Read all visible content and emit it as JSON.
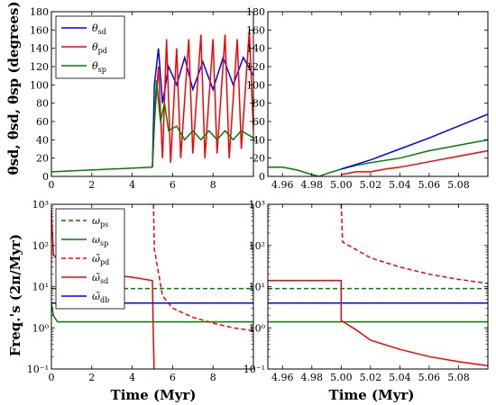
{
  "colors": {
    "blue": "#0000ff",
    "red": "#ff0000",
    "green": "#008000"
  },
  "chart_data": [
    {
      "id": "top-left",
      "type": "line",
      "xlim": [
        0,
        10
      ],
      "ylim": [
        0,
        180
      ],
      "x_ticks": [
        0,
        2,
        4,
        6,
        8
      ],
      "x_tick_labels": [
        "0",
        "2",
        "4",
        "6",
        "8"
      ],
      "y_ticks": [
        0,
        20,
        40,
        60,
        80,
        100,
        120,
        140,
        160,
        180
      ],
      "y_tick_labels": [
        "0",
        "20",
        "40",
        "60",
        "80",
        "100",
        "120",
        "140",
        "160",
        "180"
      ],
      "ylabel": "θsd, θsd, θsp (degrees)",
      "xlabel": "",
      "legend_position": "top-left",
      "legend": [
        {
          "name": "θ",
          "sub": "sd",
          "color": "blue"
        },
        {
          "name": "θ",
          "sub": "pd",
          "color": "red"
        },
        {
          "name": "θ",
          "sub": "sp",
          "color": "green"
        }
      ],
      "series": [
        {
          "key": "theta_sd_pre",
          "color": "green",
          "points": [
            [
              0,
              5
            ],
            [
              5,
              10
            ]
          ]
        },
        {
          "key": "theta_sd",
          "color": "blue",
          "points": [
            [
              5.0,
              10
            ],
            [
              5.1,
              100
            ],
            [
              5.3,
              140
            ],
            [
              5.5,
              80
            ],
            [
              5.8,
              120
            ],
            [
              6.2,
              100
            ],
            [
              6.6,
              130
            ],
            [
              7.0,
              95
            ],
            [
              7.5,
              125
            ],
            [
              8.0,
              95
            ],
            [
              8.5,
              130
            ],
            [
              9.0,
              100
            ],
            [
              9.5,
              130
            ],
            [
              10,
              110
            ]
          ]
        },
        {
          "key": "theta_pd",
          "color": "red",
          "points": [
            [
              5.0,
              10
            ],
            [
              5.1,
              60
            ],
            [
              5.3,
              120
            ],
            [
              5.5,
              20
            ],
            [
              5.7,
              150
            ],
            [
              5.9,
              15
            ],
            [
              6.2,
              140
            ],
            [
              6.4,
              20
            ],
            [
              6.8,
              150
            ],
            [
              7.0,
              25
            ],
            [
              7.4,
              155
            ],
            [
              7.6,
              20
            ],
            [
              8.0,
              150
            ],
            [
              8.2,
              25
            ],
            [
              8.6,
              155
            ],
            [
              8.8,
              20
            ],
            [
              9.2,
              150
            ],
            [
              9.4,
              30
            ],
            [
              9.8,
              160
            ],
            [
              10,
              50
            ]
          ]
        },
        {
          "key": "theta_sp",
          "color": "green",
          "points": [
            [
              5.0,
              10
            ],
            [
              5.2,
              105
            ],
            [
              5.4,
              60
            ],
            [
              5.6,
              80
            ],
            [
              5.8,
              50
            ],
            [
              6.2,
              55
            ],
            [
              6.6,
              40
            ],
            [
              7.0,
              50
            ],
            [
              7.4,
              40
            ],
            [
              7.8,
              50
            ],
            [
              8.2,
              40
            ],
            [
              8.6,
              50
            ],
            [
              9.0,
              40
            ],
            [
              9.4,
              50
            ],
            [
              10,
              42
            ]
          ]
        }
      ]
    },
    {
      "id": "top-right",
      "type": "line",
      "xlim": [
        4.95,
        5.1
      ],
      "ylim": [
        0,
        180
      ],
      "x_ticks": [
        4.96,
        4.98,
        5.0,
        5.02,
        5.04,
        5.06,
        5.08
      ],
      "x_tick_labels": [
        "4.96",
        "4.98",
        "5.00",
        "5.02",
        "5.04",
        "5.06",
        "5.08"
      ],
      "y_ticks": [
        0,
        20,
        40,
        60,
        80,
        100,
        120,
        140,
        160,
        180
      ],
      "y_tick_labels": [
        "0",
        "20",
        "40",
        "60",
        "80",
        "100",
        "120",
        "140",
        "160",
        "180"
      ],
      "xlabel": "",
      "series": [
        {
          "key": "theta_sp_pre",
          "color": "green",
          "points": [
            [
              4.95,
              10
            ],
            [
              4.96,
              10
            ],
            [
              4.97,
              7
            ],
            [
              4.98,
              2
            ],
            [
              4.985,
              0
            ],
            [
              4.99,
              3
            ],
            [
              5.0,
              8
            ],
            [
              5.01,
              12
            ],
            [
              5.02,
              15
            ],
            [
              5.04,
              20
            ],
            [
              5.06,
              28
            ],
            [
              5.08,
              34
            ],
            [
              5.1,
              40
            ]
          ]
        },
        {
          "key": "theta_sd",
          "color": "blue",
          "points": [
            [
              5.0,
              8
            ],
            [
              5.02,
              18
            ],
            [
              5.04,
              30
            ],
            [
              5.06,
              42
            ],
            [
              5.08,
              55
            ],
            [
              5.1,
              68
            ]
          ]
        },
        {
          "key": "theta_pd",
          "color": "red",
          "points": [
            [
              5.0,
              2
            ],
            [
              5.01,
              5
            ],
            [
              5.02,
              5
            ],
            [
              5.03,
              8
            ],
            [
              5.04,
              10
            ],
            [
              5.06,
              16
            ],
            [
              5.08,
              22
            ],
            [
              5.1,
              28
            ]
          ]
        }
      ]
    },
    {
      "id": "bottom-left",
      "type": "line",
      "xlim": [
        0,
        10
      ],
      "ylog": true,
      "ylim": [
        0.1,
        1000
      ],
      "x_ticks": [
        0,
        2,
        4,
        6,
        8
      ],
      "x_tick_labels": [
        "0",
        "2",
        "4",
        "6",
        "8"
      ],
      "y_ticks": [
        0.1,
        1,
        10,
        100,
        1000
      ],
      "y_tick_labels": [
        "10⁻¹",
        "10⁰",
        "10¹",
        "10²",
        "10³"
      ],
      "xlabel": "Time (Myr)",
      "ylabel": "Freq.'s (2π/Myr)",
      "legend_position": "top-left",
      "legend": [
        {
          "name": "ω",
          "sub": "ps",
          "color": "green",
          "dash": true
        },
        {
          "name": "ω",
          "sub": "sp",
          "color": "green",
          "dash": false
        },
        {
          "name": "ω̃",
          "sub": "pd",
          "color": "red",
          "dash": true
        },
        {
          "name": "ω̃",
          "sub": "sd",
          "color": "red",
          "dash": false
        },
        {
          "name": "ω̃",
          "sub": "db",
          "color": "blue",
          "dash": false
        }
      ],
      "series": [
        {
          "key": "omega_ps",
          "color": "green",
          "dash": true,
          "points": [
            [
              0,
              9
            ],
            [
              10,
              9
            ]
          ]
        },
        {
          "key": "omega_sp",
          "color": "green",
          "dash": false,
          "points": [
            [
              0,
              4
            ],
            [
              0.1,
              2
            ],
            [
              0.3,
              1.4
            ],
            [
              10,
              1.4
            ]
          ]
        },
        {
          "key": "omega_pd",
          "color": "red",
          "dash": true,
          "points": [
            [
              5.05,
              1000
            ],
            [
              5.1,
              80
            ],
            [
              5.5,
              6
            ],
            [
              6,
              3
            ],
            [
              7,
              1.8
            ],
            [
              8,
              1.3
            ],
            [
              9,
              1.0
            ],
            [
              10,
              0.85
            ]
          ]
        },
        {
          "key": "omega_sd",
          "color": "red",
          "dash": false,
          "points": [
            [
              0,
              700
            ],
            [
              0.1,
              60
            ],
            [
              0.5,
              35
            ],
            [
              1,
              28
            ],
            [
              2,
              22
            ],
            [
              3,
              19
            ],
            [
              4,
              17
            ],
            [
              5,
              14
            ],
            [
              5.02,
              5
            ],
            [
              5.05,
              0.5
            ],
            [
              5.08,
              0.1
            ]
          ]
        },
        {
          "key": "omega_db",
          "color": "blue",
          "dash": false,
          "points": [
            [
              0,
              4
            ],
            [
              10,
              4
            ]
          ]
        }
      ]
    },
    {
      "id": "bottom-right",
      "type": "line",
      "xlim": [
        4.95,
        5.1
      ],
      "ylog": true,
      "ylim": [
        0.1,
        1000
      ],
      "x_ticks": [
        4.96,
        4.98,
        5.0,
        5.02,
        5.04,
        5.06,
        5.08
      ],
      "x_tick_labels": [
        "4.96",
        "4.98",
        "5.00",
        "5.02",
        "5.04",
        "5.06",
        "5.08"
      ],
      "y_ticks": [
        0.1,
        1,
        10,
        100,
        1000
      ],
      "y_tick_labels": [
        "10⁻¹",
        "10⁰",
        "10¹",
        "10²",
        "10³"
      ],
      "xlabel": "Time (Myr)",
      "series": [
        {
          "key": "omega_ps",
          "color": "green",
          "dash": true,
          "points": [
            [
              4.95,
              9
            ],
            [
              5.1,
              9
            ]
          ]
        },
        {
          "key": "omega_sp",
          "color": "green",
          "dash": false,
          "points": [
            [
              4.95,
              1.4
            ],
            [
              5.1,
              1.4
            ]
          ]
        },
        {
          "key": "omega_db",
          "color": "blue",
          "dash": false,
          "points": [
            [
              4.95,
              4
            ],
            [
              5.1,
              4
            ]
          ]
        },
        {
          "key": "omega_pd",
          "color": "red",
          "dash": true,
          "points": [
            [
              5.0,
              1000
            ],
            [
              5.001,
              120
            ],
            [
              5.01,
              80
            ],
            [
              5.02,
              50
            ],
            [
              5.04,
              30
            ],
            [
              5.06,
              20
            ],
            [
              5.08,
              15
            ],
            [
              5.1,
              12
            ]
          ]
        },
        {
          "key": "omega_sd",
          "color": "red",
          "dash": false,
          "points": [
            [
              4.95,
              14
            ],
            [
              5.0,
              14
            ],
            [
              5.0,
              1.5
            ],
            [
              5.01,
              0.9
            ],
            [
              5.02,
              0.5
            ],
            [
              5.04,
              0.3
            ],
            [
              5.06,
              0.2
            ],
            [
              5.08,
              0.15
            ],
            [
              5.1,
              0.12
            ]
          ]
        }
      ]
    }
  ]
}
